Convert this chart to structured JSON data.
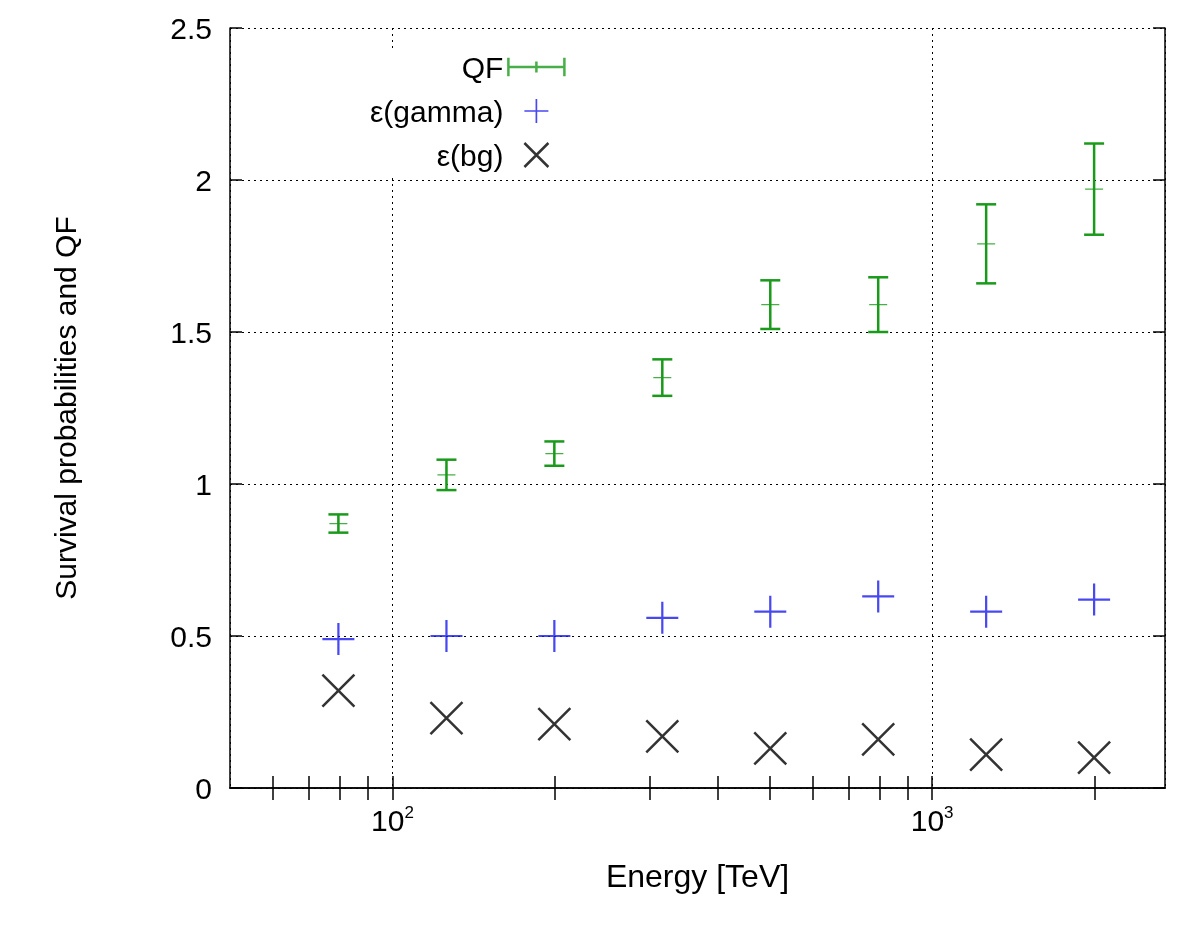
{
  "chart_data": {
    "type": "scatter",
    "xlabel": "Energy [TeV]",
    "ylabel": "Survival probabilities and QF",
    "x": [
      79.4,
      125.9,
      199.5,
      316.2,
      501.2,
      794.3,
      1258.9,
      1995.3
    ],
    "series": [
      {
        "name": "QF",
        "color": "#1a9a1a",
        "values": [
          0.87,
          1.03,
          1.1,
          1.35,
          1.59,
          1.59,
          1.79,
          1.97
        ],
        "errors": [
          0.03,
          0.05,
          0.04,
          0.06,
          0.08,
          0.09,
          0.13,
          0.15
        ]
      },
      {
        "name": "ε(gamma)",
        "color": "#1a1aee",
        "values": [
          0.49,
          0.5,
          0.5,
          0.56,
          0.58,
          0.63,
          0.58,
          0.62
        ]
      },
      {
        "name": "ε(bg)",
        "color": "#000000",
        "marker": "cross",
        "values": [
          0.32,
          0.23,
          0.21,
          0.17,
          0.13,
          0.16,
          0.11,
          0.1
        ]
      }
    ],
    "log": "x",
    "xlim": [
      50,
      2700
    ],
    "ylim": [
      0,
      2.5
    ],
    "xticks": [
      {
        "value": 60,
        "label": null
      },
      {
        "value": 70,
        "label": null
      },
      {
        "value": 80,
        "label": null
      },
      {
        "value": 90,
        "label": null
      },
      {
        "value": 100,
        "label": "10$^{2}$"
      },
      {
        "value": 200,
        "label": null
      },
      {
        "value": 300,
        "label": null
      },
      {
        "value": 400,
        "label": null
      },
      {
        "value": 500,
        "label": null
      },
      {
        "value": 600,
        "label": null
      },
      {
        "value": 700,
        "label": null
      },
      {
        "value": 800,
        "label": null
      },
      {
        "value": 900,
        "label": null
      },
      {
        "value": 1000,
        "label": "10$^{3}$"
      },
      {
        "value": 2000,
        "label": null
      }
    ],
    "yticks": [
      0,
      0.5,
      1,
      1.5,
      2,
      2.5
    ],
    "grid": true,
    "legend": "top left"
  }
}
